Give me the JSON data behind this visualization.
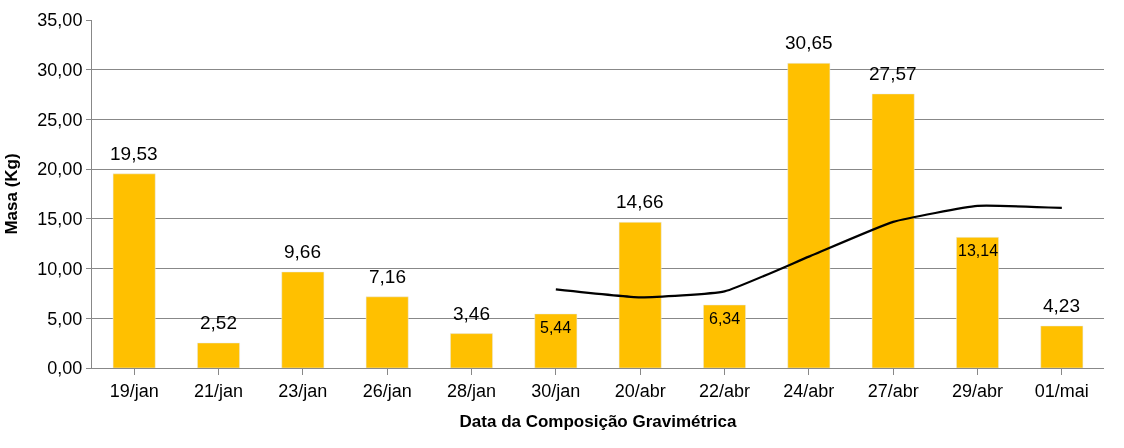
{
  "chart_data": {
    "type": "bar",
    "xlabel": "Data da Composição Gravimétrica",
    "ylabel": "Masa (Kg)",
    "categories": [
      "19/jan",
      "21/jan",
      "23/jan",
      "26/jan",
      "28/jan",
      "30/jan",
      "20/abr",
      "22/abr",
      "24/abr",
      "27/abr",
      "29/abr",
      "01/mai"
    ],
    "series": [
      {
        "color": "#ffc000",
        "values": [
          19.53,
          2.52,
          9.66,
          7.16,
          3.46,
          5.44,
          14.66,
          6.34,
          30.65,
          27.57,
          13.14,
          4.23
        ],
        "value_labels": [
          "19,53",
          "2,52",
          "9,66",
          "7,16",
          "3,46",
          "5,44",
          "14,66",
          "6,34",
          "30,65",
          "27,57",
          "13,14",
          "4,23"
        ]
      },
      {
        "type": "line",
        "color": "#000000",
        "marker": "none",
        "values": [
          null,
          null,
          null,
          null,
          null,
          7.9,
          7.1,
          7.7,
          11.2,
          14.7,
          16.3,
          16.1
        ]
      }
    ],
    "ylim": [
      0,
      35
    ],
    "yticks": [
      {
        "value": 0,
        "label": "0,00"
      },
      {
        "value": 5,
        "label": "5,00"
      },
      {
        "value": 10,
        "label": "10,00"
      },
      {
        "value": 15,
        "label": "15,00"
      },
      {
        "value": 20,
        "label": "20,00"
      },
      {
        "value": 25,
        "label": "25,00"
      },
      {
        "value": 30,
        "label": "30,00"
      },
      {
        "value": 35,
        "label": "35,00"
      }
    ],
    "grid": "y"
  }
}
